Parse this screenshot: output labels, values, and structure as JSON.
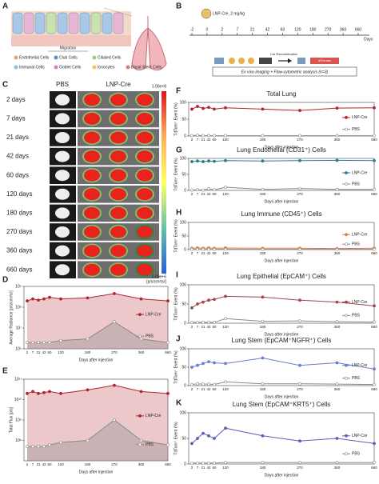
{
  "panel_letters": [
    "A",
    "B",
    "C",
    "D",
    "E",
    "F",
    "G",
    "H",
    "I",
    "J",
    "K"
  ],
  "panel_a": {
    "migration": "Migration",
    "legend": [
      "Endothelial Cells",
      "Club Cells",
      "Ciliated Cells",
      "Immunal Cells",
      "Goblet Cells",
      "Ionocytes",
      "Basal Stem Cells"
    ]
  },
  "panel_b": {
    "dose": "LNP-Cre, 2 mg/kg",
    "timeline": [
      -2,
      0,
      2,
      7,
      21,
      42,
      60,
      120,
      180,
      270,
      360,
      660
    ],
    "axis_unit": "Days",
    "recombination": "Cre Recombination",
    "reporter": "tdTomato",
    "analysis": "Ex vivo imaging + Flow-cytometric analysis (n=3)"
  },
  "panel_c": {
    "columns": [
      "PBS",
      "LNP-Cre"
    ],
    "rows": [
      "2 days",
      "7 days",
      "21 days",
      "42 days",
      "60 days",
      "120 days",
      "180 days",
      "270 days",
      "360 days",
      "660 days"
    ],
    "colorbar_max": "1.00e+8",
    "colorbar_min": "2.00e+6",
    "colorbar_unit": "[p/s/cm²/sr]"
  },
  "chart_data": [
    {
      "type": "line",
      "area": true,
      "log_y": true,
      "y_label": "Average Radiance [p/s/cm²/sr]",
      "x_label": "Days after injection",
      "categories": [
        "2",
        "7",
        "21",
        "42",
        "60",
        "120",
        "180",
        "270",
        "360",
        "660"
      ],
      "ylim": [
        1000000,
        1000000000
      ],
      "yticks": [
        {
          "value": 1000000,
          "label": "10⁶"
        },
        {
          "value": 10000000,
          "label": "10⁷"
        },
        {
          "value": 100000000,
          "label": "10⁸"
        },
        {
          "value": 1000000000,
          "label": "10⁹"
        }
      ],
      "series": [
        {
          "name": "LNP-Cre",
          "color": "#b5232b",
          "values": [
            200000000,
            250000000,
            220000000,
            250000000,
            300000000,
            250000000,
            280000000,
            450000000,
            250000000,
            200000000
          ]
        },
        {
          "name": "PBS",
          "color": "#8a8a8a",
          "values": [
            2000000,
            2000000,
            2000000,
            2000000,
            2000000,
            2500000,
            3000000,
            20000000,
            3000000,
            2000000
          ]
        }
      ]
    },
    {
      "type": "line",
      "area": true,
      "log_y": true,
      "y_label": "Total Flux [p/s]",
      "x_label": "Days after injection",
      "categories": [
        "2",
        "7",
        "21",
        "42",
        "60",
        "120",
        "180",
        "270",
        "360",
        "660"
      ],
      "ylim": [
        10000000,
        100000000000
      ],
      "yticks": [
        {
          "value": 100000000,
          "label": "10⁸"
        },
        {
          "value": 1000000000,
          "label": "10⁹"
        },
        {
          "value": 10000000000,
          "label": "10¹⁰"
        },
        {
          "value": 100000000000,
          "label": "10¹¹"
        }
      ],
      "series": [
        {
          "name": "LNP-Cre",
          "color": "#b5232b",
          "values": [
            20000000000,
            25000000000,
            20000000000,
            22000000000,
            25000000000,
            20000000000,
            30000000000,
            50000000000,
            25000000000,
            20000000000
          ]
        },
        {
          "name": "PBS",
          "color": "#8a8a8a",
          "values": [
            50000000,
            50000000,
            50000000,
            50000000,
            60000000,
            80000000,
            100000000,
            1000000000,
            100000000,
            60000000
          ]
        }
      ]
    },
    {
      "type": "line",
      "title": "Total Lung",
      "y_label": "TdTom⁺ Event (%)",
      "x_label": "Days after injection",
      "categories": [
        "2",
        "7",
        "21",
        "42",
        "60",
        "120",
        "180",
        "270",
        "360",
        "660"
      ],
      "ylim": [
        0,
        100
      ],
      "yticks": [
        0,
        50,
        100
      ],
      "series": [
        {
          "name": "LNP-Cre",
          "color": "#b5232b",
          "values": [
            80,
            88,
            82,
            85,
            80,
            84,
            80,
            76,
            83,
            84
          ]
        },
        {
          "name": "PBS",
          "color": "#8a8a8a",
          "values": [
            1,
            2,
            1,
            1,
            1,
            1,
            1,
            1,
            1,
            1
          ]
        }
      ]
    },
    {
      "type": "line",
      "title": "Lung Endothelial (CD31⁺) Cells",
      "y_label": "TdTom⁺ Event (%)",
      "x_label": "Days after injection",
      "categories": [
        "2",
        "7",
        "21",
        "42",
        "60",
        "120",
        "180",
        "270",
        "360",
        "660"
      ],
      "ylim": [
        0,
        100
      ],
      "yticks": [
        0,
        50,
        100
      ],
      "series": [
        {
          "name": "LNP-Cre",
          "color": "#2b7a8c",
          "values": [
            90,
            92,
            90,
            92,
            91,
            93,
            92,
            93,
            94,
            93
          ]
        },
        {
          "name": "PBS",
          "color": "#8a8a8a",
          "values": [
            1,
            2,
            1,
            5,
            2,
            10,
            3,
            6,
            3,
            3
          ]
        }
      ]
    },
    {
      "type": "line",
      "title": "Lung Immune (CD45⁺) Cells",
      "y_label": "TdTom⁺ Event (%)",
      "x_label": "Days after injection",
      "categories": [
        "2",
        "7",
        "21",
        "42",
        "60",
        "120",
        "180",
        "270",
        "360",
        "660"
      ],
      "ylim": [
        0,
        100
      ],
      "yticks": [
        0,
        50,
        100
      ],
      "series": [
        {
          "name": "LNP-Cre",
          "color": "#e07b39",
          "values": [
            5,
            6,
            5,
            6,
            5,
            6,
            5,
            5,
            4,
            5
          ]
        },
        {
          "name": "PBS",
          "color": "#8a8a8a",
          "values": [
            1,
            1,
            1,
            1,
            1,
            1,
            1,
            1,
            1,
            1
          ]
        }
      ]
    },
    {
      "type": "line",
      "title": "Lung Epithelial (EpCAM⁺) Cells",
      "y_label": "TdTom⁺ Event (%)",
      "x_label": "Days after injection",
      "categories": [
        "2",
        "7",
        "21",
        "42",
        "60",
        "120",
        "180",
        "270",
        "360",
        "660"
      ],
      "ylim": [
        0,
        100
      ],
      "yticks": [
        0,
        50,
        100
      ],
      "series": [
        {
          "name": "LNP-Cre",
          "color": "#a0464e",
          "values": [
            40,
            50,
            55,
            60,
            62,
            70,
            68,
            60,
            55,
            45
          ]
        },
        {
          "name": "PBS",
          "color": "#8a8a8a",
          "values": [
            2,
            2,
            2,
            2,
            2,
            12,
            5,
            6,
            4,
            3
          ]
        }
      ]
    },
    {
      "type": "line",
      "title": "Lung Stem (EpCAM⁺NGFR⁺) Cells",
      "y_label": "TdTom⁺ Event (%)",
      "x_label": "Days after injection",
      "categories": [
        "2",
        "7",
        "21",
        "42",
        "60",
        "120",
        "180",
        "270",
        "360",
        "660"
      ],
      "ylim": [
        0,
        100
      ],
      "yticks": [
        0,
        50,
        100
      ],
      "series": [
        {
          "name": "LNP-Cre",
          "color": "#6a7fd0",
          "values": [
            50,
            55,
            60,
            65,
            62,
            60,
            75,
            55,
            62,
            45
          ]
        },
        {
          "name": "PBS",
          "color": "#8a8a8a",
          "values": [
            3,
            5,
            4,
            4,
            3,
            10,
            5,
            5,
            4,
            3
          ]
        }
      ]
    },
    {
      "type": "line",
      "title": "Lung Stem (EpCAM⁺KRT5⁺) Cells",
      "y_label": "TdTom⁺ Event (%)",
      "x_label": "Days after injection",
      "categories": [
        "2",
        "7",
        "21",
        "42",
        "60",
        "120",
        "180",
        "270",
        "360",
        "660"
      ],
      "ylim": [
        0,
        100
      ],
      "yticks": [
        0,
        50,
        100
      ],
      "series": [
        {
          "name": "LNP-Cre",
          "color": "#5b5fb8",
          "values": [
            40,
            50,
            60,
            55,
            50,
            70,
            55,
            45,
            50,
            40
          ]
        },
        {
          "name": "PBS",
          "color": "#8a8a8a",
          "values": [
            2,
            2,
            2,
            2,
            2,
            3,
            3,
            3,
            3,
            3
          ]
        }
      ]
    }
  ]
}
